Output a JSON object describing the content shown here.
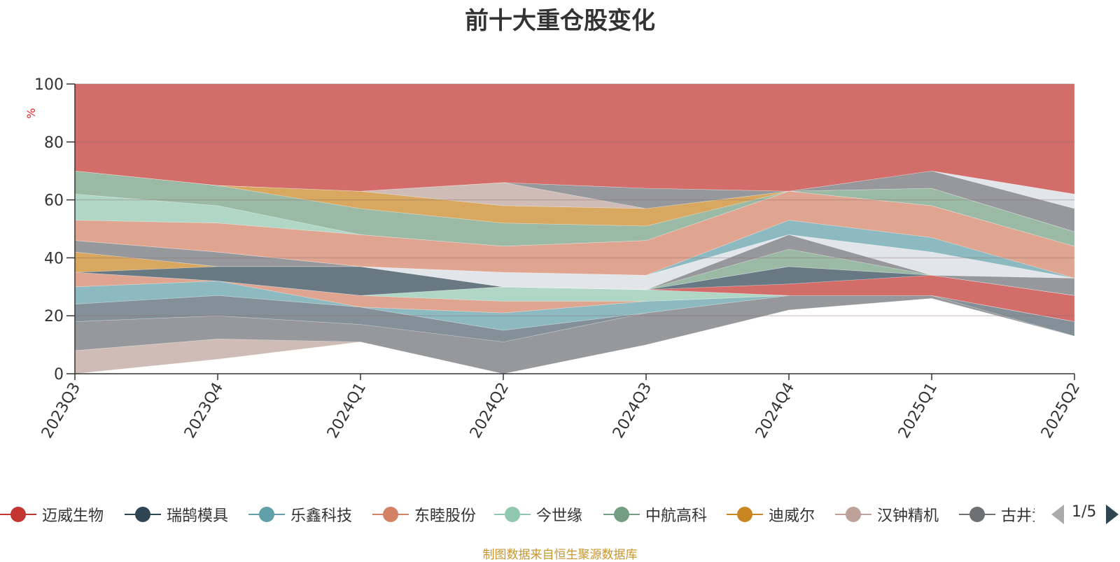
{
  "title": "前十大重仓股变化",
  "source_note": "制图数据来自恒生聚源数据库",
  "pager": {
    "text": "1/5"
  },
  "chart_data": {
    "type": "area",
    "stacked": true,
    "title": "前十大重仓股变化",
    "ylabel": "%",
    "ylim": [
      0,
      100
    ],
    "yticks": [
      0,
      20,
      40,
      60,
      80,
      100
    ],
    "x": [
      "2023Q3",
      "2023Q4",
      "2024Q1",
      "2024Q2",
      "2024Q3",
      "2024Q4",
      "2025Q1",
      "2025Q2"
    ],
    "series": [
      {
        "name": "迈威生物",
        "color": "#c23531",
        "values": [
          0,
          0,
          5,
          0,
          0,
          0,
          0,
          0
        ]
      },
      {
        "name": "瑞鹄模具",
        "color": "#2f4554",
        "values": [
          0,
          0,
          0,
          0,
          4,
          0,
          0,
          0
        ]
      },
      {
        "name": "乐鑫科技",
        "color": "#61a0a8",
        "values": [
          0,
          0,
          0,
          0,
          0,
          0,
          5,
          5
        ]
      },
      {
        "name": "东睦股份",
        "color": "#d48265",
        "values": [
          0,
          5,
          0,
          0,
          0,
          0,
          0,
          0
        ]
      },
      {
        "name": "今世缘",
        "color": "#91c7ae",
        "values": [
          0,
          0,
          0,
          0,
          0,
          7,
          8,
          0
        ]
      },
      {
        "name": "中航高科",
        "color": "#749f83",
        "values": [
          0,
          0,
          0,
          0,
          0,
          6,
          5,
          0
        ]
      },
      {
        "name": "迪威尔",
        "color": "#ca8622",
        "values": [
          0,
          0,
          6,
          0,
          6,
          9,
          9,
          8
        ]
      },
      {
        "name": "汉钟精机",
        "color": "#bda29a",
        "values": [
          8,
          7,
          0,
          0,
          0,
          0,
          0,
          0
        ]
      }
    ]
  },
  "bands": [
    {
      "color": "#bda29a",
      "bottom": [
        0,
        5,
        11,
        0,
        10,
        22,
        26,
        13
      ],
      "top": [
        8,
        12,
        11,
        0,
        10,
        22,
        26,
        13
      ]
    },
    {
      "color": "#6e7074",
      "bottom": [
        8,
        12,
        11,
        0,
        10,
        22,
        26,
        13
      ],
      "top": [
        18,
        20,
        17,
        11,
        21,
        27,
        27,
        13
      ]
    },
    {
      "color": "#546570",
      "bottom": [
        18,
        20,
        17,
        11,
        21,
        27,
        27,
        13
      ],
      "top": [
        24,
        27,
        23,
        15,
        21,
        27,
        27,
        18
      ]
    },
    {
      "color": "#61a0a8",
      "bottom": [
        24,
        27,
        23,
        15,
        21,
        27,
        27,
        18
      ],
      "top": [
        30,
        32,
        23,
        21,
        25,
        27,
        27,
        18
      ]
    },
    {
      "color": "#d48265",
      "bottom": [
        30,
        32,
        23,
        21,
        25,
        27,
        27,
        18
      ],
      "top": [
        35,
        32,
        27,
        25,
        25,
        27,
        27,
        18
      ]
    },
    {
      "color": "#91c7ae",
      "bottom": [
        35,
        32,
        27,
        25,
        25,
        27,
        27,
        18
      ],
      "top": [
        35,
        32,
        27,
        30,
        29,
        27,
        27,
        18
      ]
    },
    {
      "color": "#c23531",
      "bottom": [
        35,
        32,
        27,
        30,
        29,
        27,
        27,
        18
      ],
      "top": [
        35,
        32,
        27,
        30,
        29,
        31,
        34,
        27
      ]
    },
    {
      "color": "#2f4554",
      "bottom": [
        35,
        32,
        27,
        30,
        29,
        31,
        34,
        27
      ],
      "top": [
        35,
        37,
        37,
        30,
        29,
        37,
        34,
        27
      ]
    },
    {
      "color": "#ca8622",
      "bottom": [
        35,
        37,
        37,
        30,
        29,
        37,
        34,
        27
      ],
      "top": [
        42,
        37,
        37,
        30,
        29,
        37,
        34,
        27
      ]
    },
    {
      "color": "#749f83",
      "bottom": [
        42,
        37,
        37,
        30,
        29,
        37,
        34,
        27
      ],
      "top": [
        42,
        37,
        37,
        30,
        29,
        43,
        34,
        27
      ]
    },
    {
      "color": "#6e7074",
      "bottom": [
        42,
        37,
        37,
        30,
        29,
        43,
        34,
        27
      ],
      "top": [
        46,
        42,
        37,
        30,
        29,
        48,
        34,
        33
      ]
    },
    {
      "color": "#d7dde3",
      "bottom": [
        46,
        42,
        37,
        30,
        29,
        48,
        34,
        33
      ],
      "top": [
        46,
        42,
        37,
        35,
        34,
        48,
        42,
        33
      ]
    },
    {
      "color": "#61a0a8",
      "bottom": [
        46,
        42,
        37,
        35,
        34,
        48,
        42,
        33
      ],
      "top": [
        46,
        42,
        37,
        35,
        34,
        53,
        47,
        33
      ]
    },
    {
      "color": "#d48265",
      "bottom": [
        46,
        42,
        37,
        35,
        34,
        53,
        47,
        33
      ],
      "top": [
        53,
        52,
        48,
        44,
        46,
        63,
        58,
        44
      ]
    },
    {
      "color": "#91c7ae",
      "bottom": [
        53,
        52,
        48,
        44,
        46,
        63,
        58,
        44
      ],
      "top": [
        62,
        58,
        48,
        44,
        46,
        63,
        58,
        44
      ]
    },
    {
      "color": "#749f83",
      "bottom": [
        62,
        58,
        48,
        44,
        46,
        63,
        58,
        44
      ],
      "top": [
        70,
        65,
        57,
        52,
        51,
        63,
        64,
        49
      ]
    },
    {
      "color": "#ca8622",
      "bottom": [
        70,
        65,
        57,
        52,
        51,
        63,
        64,
        49
      ],
      "top": [
        70,
        65,
        63,
        58,
        57,
        63,
        64,
        49
      ]
    },
    {
      "color": "#bda29a",
      "bottom": [
        70,
        65,
        63,
        58,
        57,
        63,
        64,
        49
      ],
      "top": [
        70,
        65,
        63,
        66,
        57,
        63,
        64,
        49
      ]
    },
    {
      "color": "#6e7074",
      "bottom": [
        70,
        65,
        63,
        66,
        57,
        63,
        64,
        49
      ],
      "top": [
        70,
        65,
        63,
        66,
        64,
        63,
        70,
        57
      ]
    },
    {
      "color": "#d7dde3",
      "bottom": [
        70,
        65,
        63,
        66,
        64,
        63,
        70,
        57
      ],
      "top": [
        70,
        65,
        63,
        66,
        64,
        63,
        70,
        62
      ]
    },
    {
      "color": "#c23531",
      "bottom": [
        70,
        65,
        63,
        66,
        64,
        63,
        70,
        62
      ],
      "top": [
        100,
        100,
        100,
        100,
        100,
        100,
        100,
        100
      ]
    }
  ],
  "legend": [
    {
      "name": "迈威生物",
      "color": "#c23531"
    },
    {
      "name": "瑞鹄模具",
      "color": "#2f4554"
    },
    {
      "name": "乐鑫科技",
      "color": "#61a0a8"
    },
    {
      "name": "东睦股份",
      "color": "#d48265"
    },
    {
      "name": "今世缘",
      "color": "#91c7ae"
    },
    {
      "name": "中航高科",
      "color": "#749f83"
    },
    {
      "name": "迪威尔",
      "color": "#ca8622"
    },
    {
      "name": "汉钟精机",
      "color": "#bda29a"
    },
    {
      "name": "古井贡酒",
      "color": "#6e7074"
    }
  ]
}
